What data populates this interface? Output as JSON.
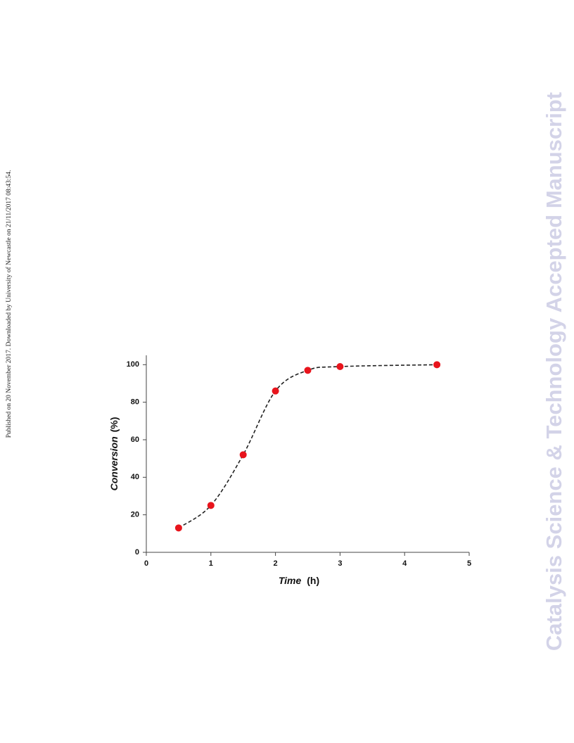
{
  "side_note": "Published on 20 November 2017. Downloaded by University of Newcastle on 21/11/2017 08:43:54.",
  "watermark": "Catalysis Science & Technology Accepted Manuscript",
  "chart_data": {
    "type": "scatter",
    "xlabel": "Time",
    "xunit": "(h)",
    "ylabel": "Conversion",
    "yunit": "(%)",
    "x": [
      0.5,
      1,
      1.5,
      2,
      2.5,
      3,
      4.5
    ],
    "series": [
      {
        "color": "#e8141c",
        "line_color": "#222222",
        "line_style": "dashed",
        "curve": "smooth",
        "values": [
          13,
          25,
          52,
          86,
          97,
          99,
          100
        ]
      }
    ],
    "xlim": [
      0,
      5
    ],
    "ylim": [
      0,
      105
    ],
    "xticks": [
      0,
      1,
      2,
      3,
      4,
      5
    ],
    "yticks": [
      0,
      20,
      40,
      60,
      80,
      100
    ]
  }
}
